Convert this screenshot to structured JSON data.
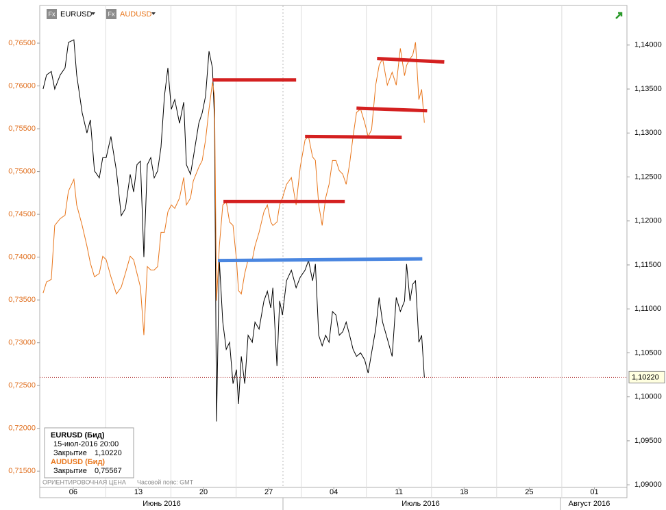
{
  "chart_data": {
    "type": "line",
    "legend_icon": "Fx",
    "x": [
      2.76,
      3.13,
      3.64,
      4.01,
      4.6,
      5.12,
      5.48,
      6.07,
      6.37,
      6.96,
      7.47,
      7.84,
      8.28,
      8.8,
      9.17,
      9.54,
      10.05,
      10.64,
      11.16,
      11.6,
      12.12,
      12.49,
      12.85,
      13.22,
      13.59,
      13.96,
      14.33,
      14.7,
      15.07,
      15.43,
      15.8,
      16.17,
      16.54,
      16.91,
      17.42,
      17.87,
      18.16,
      18.6,
      18.9,
      19.49,
      19.86,
      20.22,
      20.59,
      20.96,
      21.18,
      21.4,
      21.7,
      22.07,
      22.44,
      22.8,
      23.17,
      23.54,
      23.76,
      24.06,
      24.43,
      24.79,
      25.24,
      25.53,
      25.97,
      26.49,
      26.86,
      27.23,
      27.45,
      27.89,
      28.18,
      28.48,
      28.92,
      29.44,
      29.95,
      30.39,
      30.91,
      31.28,
      31.72,
      32.02,
      32.38,
      32.75,
      33.12,
      33.49,
      33.86,
      34.23,
      34.59,
      34.96,
      35.33,
      35.7,
      36.07,
      36.44,
      36.88,
      37.32,
      37.69,
      38.06,
      38.5,
      38.87,
      39.24,
      39.75,
      40.27,
      40.71,
      41.15,
      41.6,
      41.82,
      42.19,
      42.48,
      42.78,
      43.14,
      43.44,
      43.73
    ],
    "series": [
      {
        "name": "EURUSD",
        "color": "#000000",
        "axis": "y2",
        "values": [
          1.135,
          1.1366,
          1.137,
          1.135,
          1.1366,
          1.1374,
          1.1403,
          1.1406,
          1.1366,
          1.1323,
          1.13,
          1.1315,
          1.1257,
          1.1249,
          1.1272,
          1.1272,
          1.1296,
          1.1257,
          1.1206,
          1.1214,
          1.1253,
          1.1233,
          1.1264,
          1.1268,
          1.1159,
          1.1264,
          1.1272,
          1.1249,
          1.1257,
          1.1284,
          1.1342,
          1.1374,
          1.1327,
          1.1338,
          1.1311,
          1.1335,
          1.1264,
          1.1253,
          1.1272,
          1.1311,
          1.1323,
          1.1342,
          1.1393,
          1.1374,
          1.1315,
          1.0972,
          1.1155,
          1.1085,
          1.1054,
          1.1062,
          1.1015,
          1.1031,
          1.0992,
          1.1046,
          1.1015,
          1.107,
          1.1062,
          1.1085,
          1.1077,
          1.1109,
          1.112,
          1.1101,
          1.1124,
          1.1035,
          1.1109,
          1.1093,
          1.1132,
          1.1144,
          1.1124,
          1.1136,
          1.1144,
          1.1155,
          1.1132,
          1.1151,
          1.107,
          1.1058,
          1.107,
          1.1062,
          1.1097,
          1.1093,
          1.107,
          1.1074,
          1.1085,
          1.107,
          1.1054,
          1.1046,
          1.105,
          1.1042,
          1.1027,
          1.105,
          1.1077,
          1.1113,
          1.1085,
          1.1066,
          1.1046,
          1.1113,
          1.1097,
          1.1109,
          1.1151,
          1.1109,
          1.1128,
          1.1132,
          1.1062,
          1.107,
          1.1022
        ]
      },
      {
        "name": "AUDUSD",
        "color": "#e8751a",
        "axis": "y",
        "values": [
          0.7358,
          0.7371,
          0.7374,
          0.7437,
          0.7445,
          0.7449,
          0.7477,
          0.7491,
          0.7461,
          0.7437,
          0.7413,
          0.7393,
          0.7377,
          0.7381,
          0.7401,
          0.7397,
          0.7377,
          0.7357,
          0.7365,
          0.7381,
          0.7401,
          0.7397,
          0.7381,
          0.7365,
          0.7309,
          0.7389,
          0.7385,
          0.7385,
          0.7389,
          0.7429,
          0.7429,
          0.7453,
          0.7461,
          0.7457,
          0.7469,
          0.7493,
          0.7461,
          0.7469,
          0.7489,
          0.7505,
          0.7513,
          0.7537,
          0.7573,
          0.7604,
          0.7588,
          0.7349,
          0.7413,
          0.7461,
          0.7465,
          0.7441,
          0.7437,
          0.7397,
          0.7361,
          0.7357,
          0.7381,
          0.7397,
          0.7397,
          0.7413,
          0.7429,
          0.7453,
          0.7461,
          0.7441,
          0.7437,
          0.7441,
          0.7461,
          0.7469,
          0.7485,
          0.7493,
          0.7461,
          0.7505,
          0.7537,
          0.7541,
          0.7517,
          0.7513,
          0.7461,
          0.7437,
          0.7469,
          0.7485,
          0.7513,
          0.7513,
          0.7501,
          0.7497,
          0.7485,
          0.7509,
          0.7541,
          0.7569,
          0.7573,
          0.7557,
          0.7541,
          0.7549,
          0.7601,
          0.7624,
          0.7632,
          0.7601,
          0.7616,
          0.7601,
          0.7644,
          0.7612,
          0.7624,
          0.7632,
          0.7636,
          0.7651,
          0.7584,
          0.7596,
          0.7557
        ]
      }
    ],
    "drawings": [
      {
        "color": "#d42020",
        "x": [
          20.96,
          29.95
        ],
        "values": [
          0.7607,
          0.7607
        ]
      },
      {
        "color": "#d42020",
        "x": [
          22.14,
          35.18
        ],
        "values": [
          0.7465,
          0.7465
        ]
      },
      {
        "color": "#d42020",
        "x": [
          30.91,
          41.3
        ],
        "values": [
          0.7541,
          0.754
        ]
      },
      {
        "color": "#d42020",
        "x": [
          36.44,
          44.03
        ],
        "values": [
          0.7574,
          0.7571
        ]
      },
      {
        "color": "#d42020",
        "x": [
          38.65,
          45.87
        ],
        "values": [
          0.7632,
          0.7628
        ]
      },
      {
        "color": "#4a86e0",
        "x": [
          21.55,
          43.51
        ],
        "values": [
          0.7396,
          0.7398
        ]
      }
    ],
    "xlim": [
      2.4,
      65.5
    ],
    "xticks": [
      {
        "value": 6,
        "label": "06"
      },
      13,
      20,
      27,
      {
        "value": 34,
        "label": "04"
      },
      {
        "value": 41,
        "label": "11"
      },
      {
        "value": 48,
        "label": "18"
      },
      {
        "value": 55,
        "label": "25"
      },
      {
        "value": 62,
        "label": "01"
      }
    ],
    "months": [
      "Июнь 2016",
      "Июль 2016",
      "Август 2016"
    ],
    "ylim": [
      0.7131,
      0.7694
    ],
    "yticks": [
      {
        "value": 0.715,
        "label": "0,71500"
      },
      {
        "value": 0.72,
        "label": "0,72000"
      },
      {
        "value": 0.725,
        "label": "0,72500"
      },
      {
        "value": 0.73,
        "label": "0,73000"
      },
      {
        "value": 0.735,
        "label": "0,73500"
      },
      {
        "value": 0.74,
        "label": "0,74000"
      },
      {
        "value": 0.745,
        "label": "0,74500"
      },
      {
        "value": 0.75,
        "label": "0,75000"
      },
      {
        "value": 0.755,
        "label": "0,75500"
      },
      {
        "value": 0.76,
        "label": "0,76000"
      },
      {
        "value": 0.765,
        "label": "0,76500"
      }
    ],
    "y2lim": [
      1.0897,
      1.1445
    ],
    "y2ticks": [
      {
        "value": 1.09,
        "label": "1,09000"
      },
      {
        "value": 1.095,
        "label": "1,09500"
      },
      {
        "value": 1.1,
        "label": "1,10000"
      },
      {
        "value": 1.105,
        "label": "1,10500"
      },
      {
        "value": 1.11,
        "label": "1,11000"
      },
      {
        "value": 1.115,
        "label": "1,11500"
      },
      {
        "value": 1.12,
        "label": "1,12000"
      },
      {
        "value": 1.125,
        "label": "1,12500"
      },
      {
        "value": 1.13,
        "label": "1,13000"
      },
      {
        "value": 1.135,
        "label": "1,13500"
      },
      {
        "value": 1.14,
        "label": "1,14000"
      }
    ],
    "last_price": {
      "value": 1.1022,
      "label": "1,10220"
    },
    "info_box": {
      "eur_title": "EURUSD (Бид)",
      "date": "15-июл-2016 20:00",
      "eur_close_label": "Закрытие",
      "eur_close": "1,10220",
      "aud_title": "AUDUSD (Бид)",
      "aud_close_label": "Закрытие",
      "aud_close": "0,75567"
    },
    "footer": "ОРИЕНТИРОВОЧНАЯ ЦЕНА",
    "timezone": "Часовой пояс: GMT"
  }
}
